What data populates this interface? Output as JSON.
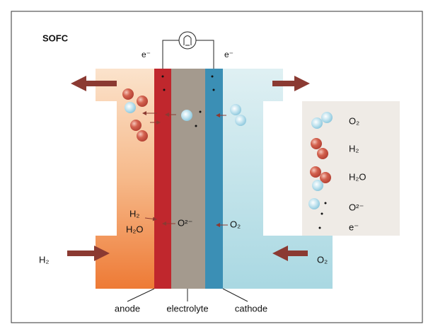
{
  "title": "SOFC",
  "electrons": [
    "e⁻",
    "e⁻"
  ],
  "inputs": {
    "fuel": "H₂",
    "oxidant": "O₂"
  },
  "cell_labels": {
    "anode_side": [
      "H₂",
      "H₂O"
    ],
    "electrolyte": "O²⁻",
    "cathode_side": "O₂"
  },
  "components": [
    "anode",
    "electrolyte",
    "cathode"
  ],
  "legend": [
    {
      "label": "O₂"
    },
    {
      "label": "H₂"
    },
    {
      "label": "H₂O"
    },
    {
      "label": "O²⁻"
    },
    {
      "label": "e⁻"
    }
  ]
}
